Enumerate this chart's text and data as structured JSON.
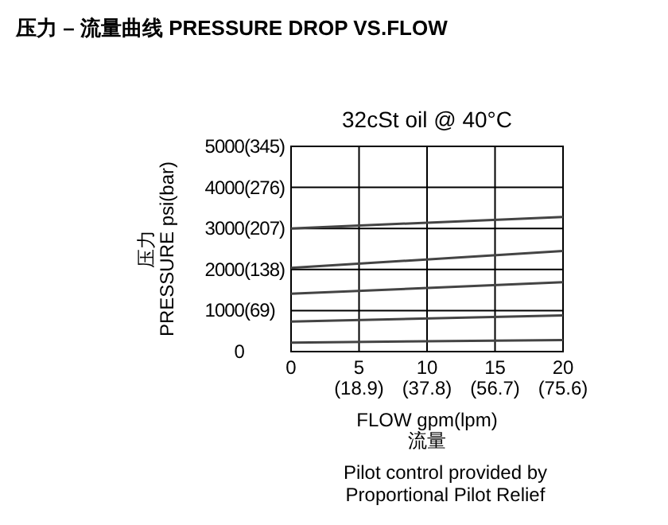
{
  "chart_data": {
    "type": "line",
    "title": "压力 – 流量曲线 PRESSURE DROP VS.FLOW",
    "subtitle": "32cSt  oil @ 40°C",
    "xlabel": "FLOW gpm(lpm)\n流量",
    "ylabel": "压力\nPRESSURE psi(bar)",
    "annotations": [
      "Pilot control provided by\nProportional Pilot Relief"
    ],
    "xlim": [
      0,
      20
    ],
    "ylim": [
      0,
      5000
    ],
    "xticks": [
      0,
      5,
      10,
      15,
      20
    ],
    "x2lim": [
      0,
      75.6
    ],
    "x2ticks": [
      {
        "value": 18.9,
        "label": "(18.9)"
      },
      {
        "value": 37.8,
        "label": "(37.8)"
      },
      {
        "value": 56.7,
        "label": "(56.7)"
      },
      {
        "value": 75.6,
        "label": "(75.6)"
      }
    ],
    "yticks": [
      0,
      1000,
      2000,
      3000,
      4000,
      5000
    ],
    "y2lim": [
      0,
      345
    ],
    "y2ticks": [
      {
        "value": 69,
        "label": "(69)"
      },
      {
        "value": 138,
        "label": "(138)"
      },
      {
        "value": 207,
        "label": "(207)"
      },
      {
        "value": 276,
        "label": "(276)"
      },
      {
        "value": 345,
        "label": "(345)"
      }
    ],
    "grid": true,
    "marker": "none",
    "line_style": "solid",
    "x": [
      0,
      20
    ],
    "series": [
      {
        "color": "#444444",
        "values": [
          3000,
          3280
        ]
      },
      {
        "color": "#444444",
        "values": [
          2040,
          2450
        ]
      },
      {
        "color": "#444444",
        "values": [
          1410,
          1690
        ]
      },
      {
        "color": "#444444",
        "values": [
          730,
          880
        ]
      },
      {
        "color": "#444444",
        "values": [
          220,
          280
        ]
      }
    ]
  }
}
